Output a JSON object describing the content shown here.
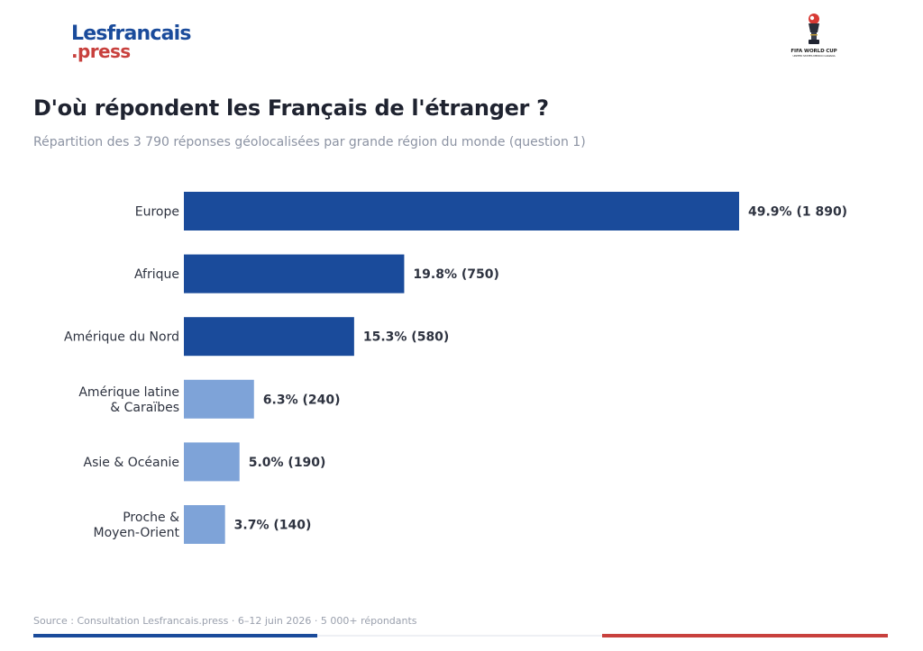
{
  "brand": {
    "logo_line1": "Lesfrancais",
    "logo_line2": ".press",
    "emblem_text_line1": "FIFA WORLD CUP",
    "emblem_text_line2": "UNITED STATES MEXICO CANADA",
    "emblem_icon": "world-cup-trophy-icon"
  },
  "colors": {
    "brand_blue": "#1a4b9b",
    "brand_red": "#c8403d",
    "bar_dark": "#1a4b9b",
    "bar_light": "#7ea3d8"
  },
  "chart_data": {
    "type": "bar",
    "orientation": "horizontal",
    "title": "D'où répondent les Français de l'étranger ?",
    "subtitle": "Répartition des 3 790 réponses géolocalisées par grande région du monde (question 1)",
    "categories": [
      [
        "Europe"
      ],
      [
        "Afrique"
      ],
      [
        "Amérique du Nord"
      ],
      [
        "Amérique latine",
        "& Caraïbes"
      ],
      [
        "Asie & Océanie"
      ],
      [
        "Proche &",
        "Moyen-Orient"
      ]
    ],
    "values": [
      49.9,
      19.8,
      15.3,
      6.3,
      5.0,
      3.7
    ],
    "counts": [
      1890,
      750,
      580,
      240,
      190,
      140
    ],
    "value_labels": [
      "49.9% (1 890)",
      "19.8% (750)",
      "15.3% (580)",
      "6.3% (240)",
      "5.0% (190)",
      "3.7% (140)"
    ],
    "bar_shades": [
      "dark",
      "dark",
      "dark",
      "light",
      "light",
      "light"
    ],
    "xlim": [
      0,
      49.9
    ],
    "grid": false,
    "legend": "none"
  },
  "footer": {
    "source": "Source : Consultation Lesfrancais.press · 6–12 juin 2026 · 5 000+ répondants"
  }
}
